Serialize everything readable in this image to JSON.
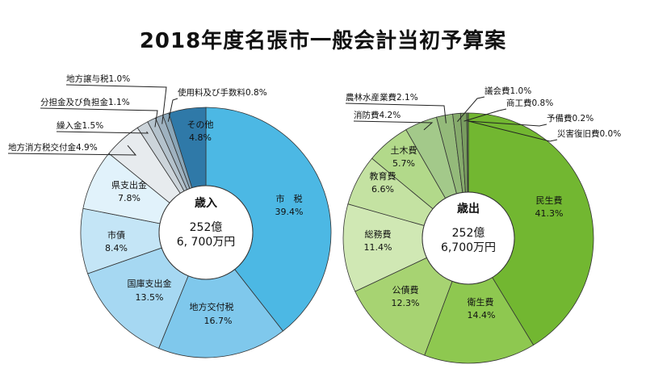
{
  "title": "2018年度名張市一般会計当初予算案",
  "chart_data": [
    {
      "type": "pie",
      "center_title": "歳入",
      "center_total_1": "252億",
      "center_total_2": "6, 700万円",
      "slices": [
        {
          "name": "市　税",
          "value": 39.4,
          "label": "39.4%",
          "color": "#4cb8e4"
        },
        {
          "name": "地方交付税",
          "value": 16.7,
          "label": "16.7%",
          "color": "#7fc8ec"
        },
        {
          "name": "国庫支出金",
          "value": 13.5,
          "label": "13.5%",
          "color": "#a6d8f2"
        },
        {
          "name": "市債",
          "value": 8.4,
          "label": "8.4%",
          "color": "#c4e5f6"
        },
        {
          "name": "県支出金",
          "value": 7.8,
          "label": "7.8%",
          "color": "#e1f2fb"
        },
        {
          "name": "地方消方税交付金",
          "value": 4.9,
          "label": "4.9%",
          "color": "#e7ebee"
        },
        {
          "name": "繰入金",
          "value": 1.5,
          "label": "1.5%",
          "color": "#ccd4da"
        },
        {
          "name": "分担金及び負担金",
          "value": 1.1,
          "label": "1.1%",
          "color": "#b4c2cc"
        },
        {
          "name": "地方譲与税",
          "value": 1.0,
          "label": "1.0%",
          "color": "#9fb2c0"
        },
        {
          "name": "使用料及び手数料",
          "value": 0.8,
          "label": "0.8%",
          "color": "#8aa6b8"
        },
        {
          "name": "その他",
          "value": 4.8,
          "label": "4.8%",
          "color": "#2f79a8"
        }
      ]
    },
    {
      "type": "pie",
      "center_title": "歳出",
      "center_total_1": "252億",
      "center_total_2": "6,700万円",
      "slices": [
        {
          "name": "民生費",
          "value": 41.3,
          "label": "41.3%",
          "color": "#72b731"
        },
        {
          "name": "衛生費",
          "value": 14.4,
          "label": "14.4%",
          "color": "#8ec850"
        },
        {
          "name": "公債費",
          "value": 12.3,
          "label": "12.3%",
          "color": "#a7d372"
        },
        {
          "name": "総務費",
          "value": 11.4,
          "label": "11.4%",
          "color": "#d0e8b4"
        },
        {
          "name": "教育費",
          "value": 6.6,
          "label": "6.6%",
          "color": "#c4e2a2"
        },
        {
          "name": "土木費",
          "value": 5.7,
          "label": "5.7%",
          "color": "#b2d98a"
        },
        {
          "name": "消防費",
          "value": 4.2,
          "label": "4.2%",
          "color": "#a3c98a"
        },
        {
          "name": "農林水産業費",
          "value": 2.1,
          "label": "2.1%",
          "color": "#94ba7a"
        },
        {
          "name": "議会費",
          "value": 1.0,
          "label": "1.0%",
          "color": "#86ab6c"
        },
        {
          "name": "商工費",
          "value": 0.8,
          "label": "0.8%",
          "color": "#799d60"
        },
        {
          "name": "予備費",
          "value": 0.2,
          "label": "0.2%",
          "color": "#6d9055"
        },
        {
          "name": "災害復旧費",
          "value": 0.0,
          "label": "0.0%",
          "color": "#62844b"
        }
      ]
    }
  ]
}
